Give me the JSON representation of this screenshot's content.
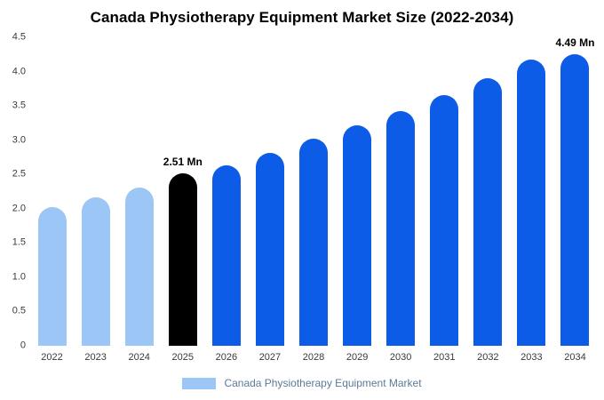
{
  "title": "Canada Physiotherapy Equipment Market Size (2022-2034)",
  "legend": {
    "label": "Canada Physiotherapy Equipment Market"
  },
  "colors": {
    "light": "#9cc6f5",
    "primary": "#0d5ce8",
    "highlight": "#000000"
  },
  "chart_data": {
    "type": "bar",
    "title": "Canada Physiotherapy Equipment Market Size (2022-2034)",
    "series_name": "Canada Physiotherapy Equipment Market",
    "categories": [
      "2022",
      "2023",
      "2024",
      "2025",
      "2026",
      "2027",
      "2028",
      "2029",
      "2030",
      "2031",
      "2032",
      "2033",
      "2034"
    ],
    "values": [
      2.02,
      2.17,
      2.31,
      2.51,
      2.63,
      2.81,
      3.02,
      3.21,
      3.43,
      3.66,
      3.9,
      4.17,
      4.49
    ],
    "bar_styles": [
      "light",
      "light",
      "light",
      "highlight",
      "primary",
      "primary",
      "primary",
      "primary",
      "primary",
      "primary",
      "primary",
      "primary",
      "primary"
    ],
    "annotations": [
      "",
      "",
      "",
      "2.51 Mn",
      "",
      "",
      "",
      "",
      "",
      "",
      "",
      "",
      "4.49 Mn"
    ],
    "ylim": [
      0,
      4.5
    ],
    "yticks": [
      "0",
      "0.5",
      "1.0",
      "1.5",
      "2.0",
      "2.5",
      "3.0",
      "3.5",
      "4.0",
      "4.5"
    ],
    "grid": false,
    "legend_position": "bottom",
    "xlabel": "",
    "ylabel": ""
  }
}
